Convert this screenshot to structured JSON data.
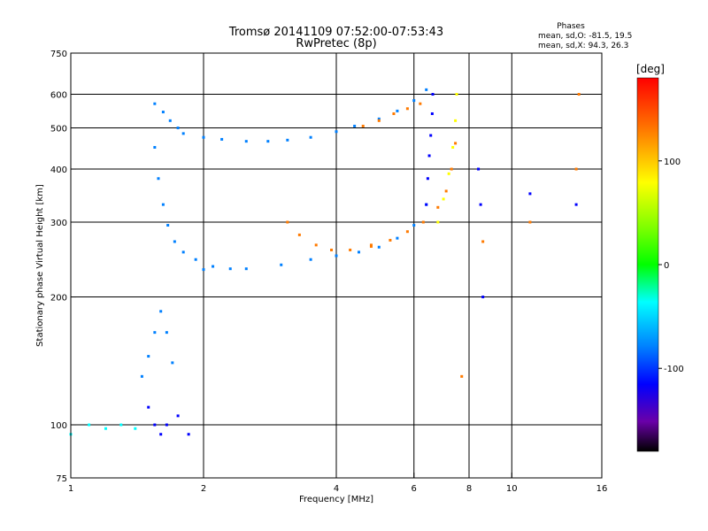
{
  "chart_data": {
    "type": "scatter",
    "title": "Tromsø 20141109 07:52:00-07:53:43",
    "subtitle": "RwPretec (8p)",
    "xlabel": "Frequency [MHz]",
    "ylabel": "Stationary phase Virtual Height [km]",
    "x_scale": "log",
    "y_scale": "log",
    "xlim": [
      1,
      16
    ],
    "ylim": [
      75,
      750
    ],
    "x_ticks": [
      1,
      2,
      4,
      6,
      8,
      10,
      16
    ],
    "y_ticks": [
      75,
      100,
      200,
      300,
      400,
      500,
      600,
      750
    ],
    "x_grid": [
      2,
      4,
      6,
      8,
      10
    ],
    "y_grid": [
      100,
      200,
      300,
      400,
      500,
      600
    ],
    "stats": {
      "header": "Phases",
      "line1": "mean, sd,O: -81.5, 19.5",
      "line2": "mean, sd,X:  94.3, 26.3"
    },
    "colorbar": {
      "label": "[deg]",
      "range": [
        -180,
        180
      ],
      "ticks": [
        100,
        0,
        -100
      ]
    },
    "series": [
      {
        "x": [
          1.8,
          2.0,
          2.2,
          2.5,
          2.8,
          3.1,
          3.5,
          4.0,
          4.4,
          5.0,
          5.5,
          6.0,
          6.4
        ],
        "y": [
          485,
          475,
          470,
          465,
          465,
          468,
          475,
          490,
          505,
          525,
          548,
          580,
          615
        ],
        "phase": -95
      },
      {
        "x": [
          1.55,
          1.62,
          1.68,
          1.75
        ],
        "y": [
          570,
          545,
          520,
          500
        ],
        "phase": -95
      },
      {
        "x": [
          1.55,
          1.58,
          1.62,
          1.66,
          1.72,
          1.8,
          1.92,
          2.1,
          2.3
        ],
        "y": [
          450,
          380,
          330,
          295,
          270,
          255,
          245,
          236,
          233
        ],
        "phase": -105
      },
      {
        "x": [
          2.0,
          2.5,
          3.0,
          3.5,
          4.0,
          4.5,
          5.0,
          5.5,
          6.0,
          6.4
        ],
        "y": [
          232,
          233,
          238,
          245,
          250,
          255,
          262,
          275,
          295,
          330
        ],
        "phase": -90
      },
      {
        "x": [
          3.1,
          3.3,
          3.6,
          3.9,
          4.3,
          4.8
        ],
        "y": [
          300,
          280,
          265,
          258,
          258,
          263
        ],
        "phase": 120
      },
      {
        "x": [
          4.8,
          5.3,
          5.8,
          6.3,
          6.8,
          7.1,
          7.3,
          7.45
        ],
        "y": [
          265,
          272,
          285,
          300,
          325,
          355,
          400,
          460
        ],
        "phase": 80
      },
      {
        "x": [
          6.8,
          7.0,
          7.2,
          7.35,
          7.45,
          7.5
        ],
        "y": [
          300,
          340,
          390,
          450,
          520,
          600
        ],
        "phase": 75
      },
      {
        "x": [
          6.4,
          6.45,
          6.5,
          6.55,
          6.6,
          6.62
        ],
        "y": [
          330,
          380,
          430,
          480,
          540,
          600
        ],
        "phase": -140
      },
      {
        "x": [
          4.6,
          5.0,
          5.4,
          5.8,
          6.2
        ],
        "y": [
          505,
          520,
          540,
          555,
          570
        ],
        "phase": 125
      },
      {
        "x": [
          1.45,
          1.5,
          1.55,
          1.6,
          1.65,
          1.7
        ],
        "y": [
          130,
          145,
          165,
          185,
          165,
          140
        ],
        "phase": -115
      },
      {
        "x": [
          1.5,
          1.55,
          1.6,
          1.65,
          1.75,
          1.85
        ],
        "y": [
          110,
          100,
          95,
          100,
          105,
          95
        ],
        "phase": -125
      },
      {
        "x": [
          1.0,
          1.1,
          1.2,
          1.3,
          1.4
        ],
        "y": [
          95,
          100,
          98,
          100,
          98
        ],
        "phase": -55
      },
      {
        "x": [
          8.4,
          8.5,
          8.6,
          11.0,
          14.0
        ],
        "y": [
          400,
          330,
          200,
          350,
          330
        ],
        "phase": -120
      },
      {
        "x": [
          7.7,
          8.6,
          11.0,
          14.0,
          14.2
        ],
        "y": [
          130,
          270,
          300,
          400,
          600
        ],
        "phase": 120
      }
    ]
  }
}
